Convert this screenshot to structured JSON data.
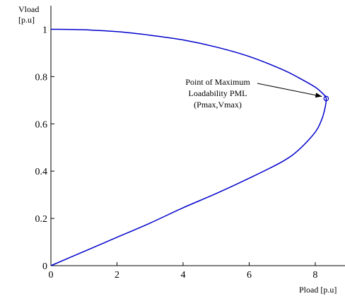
{
  "chart_data": {
    "type": "line",
    "title": "",
    "xlabel": "Pload [p.u]",
    "ylabel": [
      "Vload",
      "[p.u]"
    ],
    "xlim": [
      0,
      8.9
    ],
    "ylim": [
      0,
      1.1
    ],
    "xticks": [
      "0",
      "2",
      "4",
      "6",
      "8"
    ],
    "yticks": [
      "0",
      "0.2",
      "0.4",
      "0.6",
      "0.8",
      "1"
    ],
    "grid": false,
    "series": [
      {
        "color": "#0000cc",
        "points": [
          [
            0,
            1.0
          ],
          [
            1.0,
            0.998
          ],
          [
            2.0,
            0.99
          ],
          [
            3.0,
            0.975
          ],
          [
            4.0,
            0.955
          ],
          [
            5.0,
            0.925
          ],
          [
            6.0,
            0.885
          ],
          [
            7.0,
            0.83
          ],
          [
            7.5,
            0.795
          ],
          [
            8.0,
            0.755
          ],
          [
            8.25,
            0.725
          ],
          [
            8.33,
            0.707
          ],
          [
            8.3,
            0.67
          ],
          [
            8.2,
            0.62
          ],
          [
            8.0,
            0.565
          ],
          [
            7.5,
            0.49
          ],
          [
            7.0,
            0.44
          ],
          [
            6.0,
            0.37
          ],
          [
            5.0,
            0.305
          ],
          [
            4.0,
            0.245
          ],
          [
            3.0,
            0.18
          ],
          [
            2.0,
            0.12
          ],
          [
            1.0,
            0.06
          ],
          [
            0,
            0
          ]
        ]
      }
    ],
    "marker": {
      "x": 8.33,
      "y": 0.707,
      "shape": "circle"
    },
    "annotation": {
      "lines": [
        "Point of Maximum",
        "Loadability PML",
        "(Pmax,Vmax)"
      ],
      "points_to": [
        8.33,
        0.707
      ]
    }
  }
}
